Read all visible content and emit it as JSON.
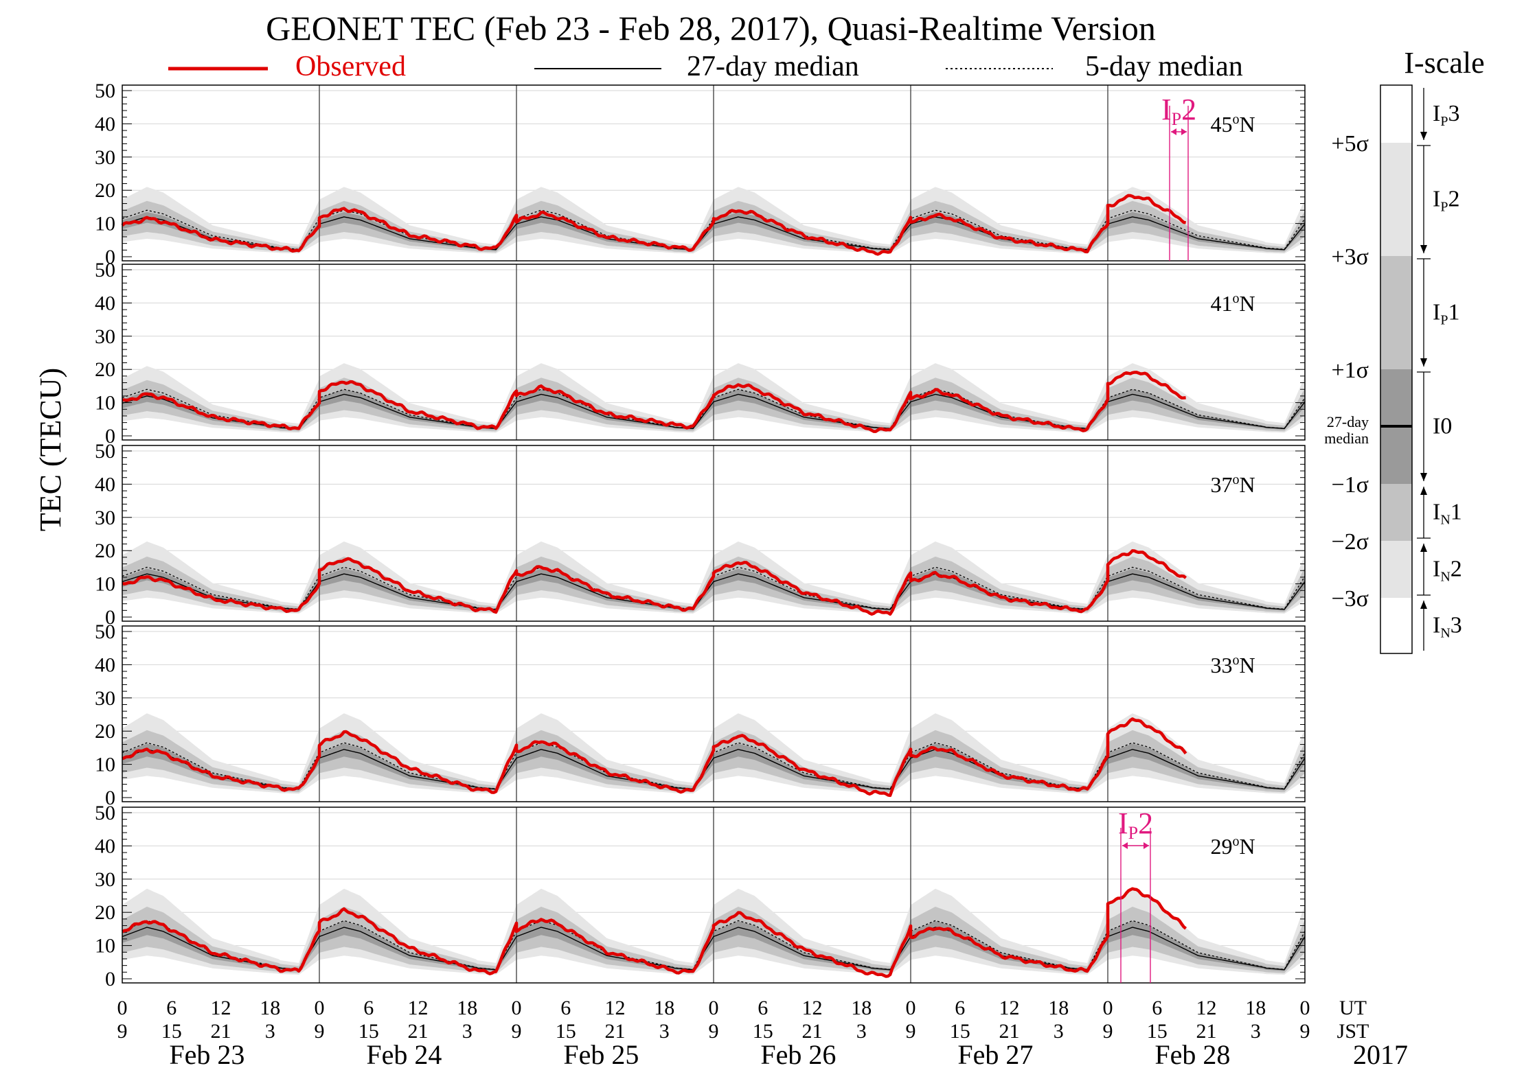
{
  "title": "GEONET TEC (Feb 23 - Feb 28, 2017), Quasi-Realtime Version",
  "legend": {
    "observed": "Observed",
    "median27": "27-day median",
    "median5": "5-day median"
  },
  "colors": {
    "observed": "#e00000",
    "annotation": "#e0197f",
    "band_outer": "#e6e6e6",
    "band_mid": "#c4c4c4",
    "band_inner": "#9c9c9c"
  },
  "ylabel": "TEC (TECU)",
  "iscale": {
    "title": "I-scale",
    "sigma_labels": [
      "+5σ",
      "+3σ",
      "+1σ",
      "27-day",
      "median",
      "−1σ",
      "−2σ",
      "−3σ"
    ],
    "levels": [
      {
        "base": "I",
        "sub": "P",
        "num": "3"
      },
      {
        "base": "I",
        "sub": "P",
        "num": "2"
      },
      {
        "base": "I",
        "sub": "P",
        "num": "1"
      },
      {
        "base": "I0",
        "sub": "",
        "num": ""
      },
      {
        "base": "I",
        "sub": "N",
        "num": "1"
      },
      {
        "base": "I",
        "sub": "N",
        "num": "2"
      },
      {
        "base": "I",
        "sub": "N",
        "num": "3"
      }
    ]
  },
  "time_axis": {
    "ut_hours": [
      "0",
      "6",
      "12",
      "18"
    ],
    "jst_hours": [
      "9",
      "15",
      "21",
      "3"
    ],
    "ut_label": "UT",
    "jst_label": "JST",
    "final_ut": "0",
    "final_jst": "9",
    "dates": [
      "Feb 23",
      "Feb 24",
      "Feb 25",
      "Feb 26",
      "Feb 27",
      "Feb 28"
    ],
    "year": "2017"
  },
  "chart_data": {
    "type": "line",
    "title": "GEONET TEC (Feb 23 - Feb 28, 2017), Quasi-Realtime Version",
    "xlabel": "UT / JST",
    "ylabel": "TEC (TECU)",
    "ylim": [
      0,
      50
    ],
    "yticks": [
      "0",
      "10",
      "20",
      "30",
      "40",
      "50"
    ],
    "days": 6,
    "observed_end_hour": 9.5,
    "panels": [
      {
        "lat_deg": "45",
        "lat_unit": "N",
        "median_peaks": [
          12,
          12,
          12,
          12,
          12,
          12
        ],
        "median5_peaks": [
          14,
          14,
          14,
          14,
          14,
          14
        ],
        "observed_peaks": [
          11.5,
          14.5,
          13,
          14,
          12.5,
          18.5
        ],
        "observed_night": [
          2.5,
          3,
          3,
          1.5,
          2.5,
          3
        ],
        "annotation": {
          "base": "I",
          "sub": "P",
          "num": "2"
        }
      },
      {
        "lat_deg": "41",
        "lat_unit": "N",
        "median_peaks": [
          12,
          12.5,
          12.5,
          12.5,
          12.5,
          12.5
        ],
        "median5_peaks": [
          14,
          14,
          14,
          14,
          14,
          14
        ],
        "observed_peaks": [
          12.5,
          16.5,
          14.5,
          15.5,
          13.5,
          19.5
        ],
        "observed_night": [
          3,
          3,
          3.5,
          2,
          2.5,
          3
        ],
        "annotation": null
      },
      {
        "lat_deg": "37",
        "lat_unit": "N",
        "median_peaks": [
          13,
          13,
          13,
          13,
          13,
          13
        ],
        "median5_peaks": [
          15,
          15,
          15,
          15,
          15,
          15
        ],
        "observed_peaks": [
          12,
          17.5,
          15,
          16.5,
          13,
          20
        ],
        "observed_night": [
          2.5,
          2.5,
          3,
          1.5,
          2.5,
          2.5
        ],
        "annotation": null
      },
      {
        "lat_deg": "33",
        "lat_unit": "N",
        "median_peaks": [
          14.5,
          14.5,
          14.5,
          14.5,
          14.5,
          14.5
        ],
        "median5_peaks": [
          16.5,
          16.5,
          16.5,
          16.5,
          16.5,
          16.5
        ],
        "observed_peaks": [
          14.5,
          19.5,
          17,
          18.5,
          15,
          23.5
        ],
        "observed_night": [
          3,
          2.5,
          2.5,
          1.5,
          3,
          3
        ],
        "annotation": null
      },
      {
        "lat_deg": "29",
        "lat_unit": "N",
        "median_peaks": [
          15.5,
          15.5,
          15.5,
          15.5,
          15.5,
          15.5
        ],
        "median5_peaks": [
          17.5,
          17.5,
          17.5,
          17.5,
          17.5,
          17.5
        ],
        "observed_peaks": [
          17.5,
          20.5,
          18,
          19.5,
          15.5,
          27
        ],
        "observed_night": [
          3,
          2.5,
          2.5,
          1.5,
          3,
          3
        ],
        "annotation": {
          "base": "I",
          "sub": "P",
          "num": "2"
        }
      }
    ]
  }
}
